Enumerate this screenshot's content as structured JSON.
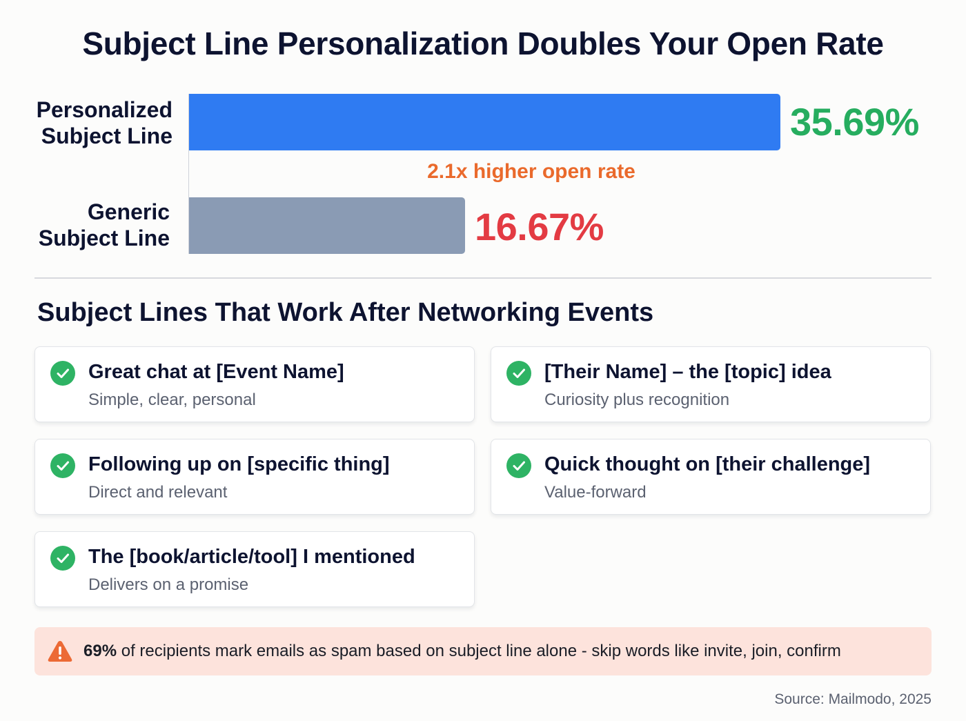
{
  "header": {
    "title": "Subject Line Personalization Doubles Your Open Rate"
  },
  "chart_data": {
    "type": "bar",
    "orientation": "horizontal",
    "title": "Subject Line Personalization Doubles Your Open Rate",
    "categories": [
      "Personalized Subject Line",
      "Generic Subject Line"
    ],
    "values": [
      35.69,
      16.67
    ],
    "value_labels": [
      "35.69%",
      "16.67%"
    ],
    "unit": "%",
    "xlabel": "",
    "ylabel": "",
    "grid": false,
    "annotations": [
      "2.1x higher open rate"
    ]
  },
  "chart": {
    "bars": [
      {
        "label_line1": "Personalized",
        "label_line2": "Subject Line",
        "value": 35.69,
        "value_label": "35.69%",
        "bar_color": "#2f7bf2",
        "value_color": "#26ad5f"
      },
      {
        "label_line1": "Generic",
        "label_line2": "Subject Line",
        "value": 16.67,
        "value_label": "16.67%",
        "bar_color": "#8a9bb4",
        "value_color": "#e33b43"
      }
    ],
    "annotation": {
      "text": "2.1x higher open rate",
      "color": "#ea6a2c"
    }
  },
  "section": {
    "title": "Subject Lines That Work After Networking Events",
    "check_color": "#2eb364",
    "items": [
      {
        "icon": "check-circle-icon",
        "title": "Great chat at [Event Name]",
        "subtitle": "Simple, clear, personal"
      },
      {
        "icon": "check-circle-icon",
        "title": "[Their Name] – the [topic] idea",
        "subtitle": "Curiosity plus recognition"
      },
      {
        "icon": "check-circle-icon",
        "title": "Following up on [specific thing]",
        "subtitle": "Direct and relevant"
      },
      {
        "icon": "check-circle-icon",
        "title": "Quick thought on [their challenge]",
        "subtitle": "Value-forward"
      },
      {
        "icon": "check-circle-icon",
        "title": "The [book/article/tool] I mentioned",
        "subtitle": "Delivers on a promise"
      }
    ]
  },
  "alert": {
    "icon": "warning-triangle-icon",
    "icon_color": "#ec6a35",
    "background": "#fde3dc",
    "highlight": "69%",
    "text": " of recipients mark emails as spam based on subject line alone - skip words like invite, join, confirm"
  },
  "footer": {
    "source": "Source: Mailmodo, 2025"
  }
}
